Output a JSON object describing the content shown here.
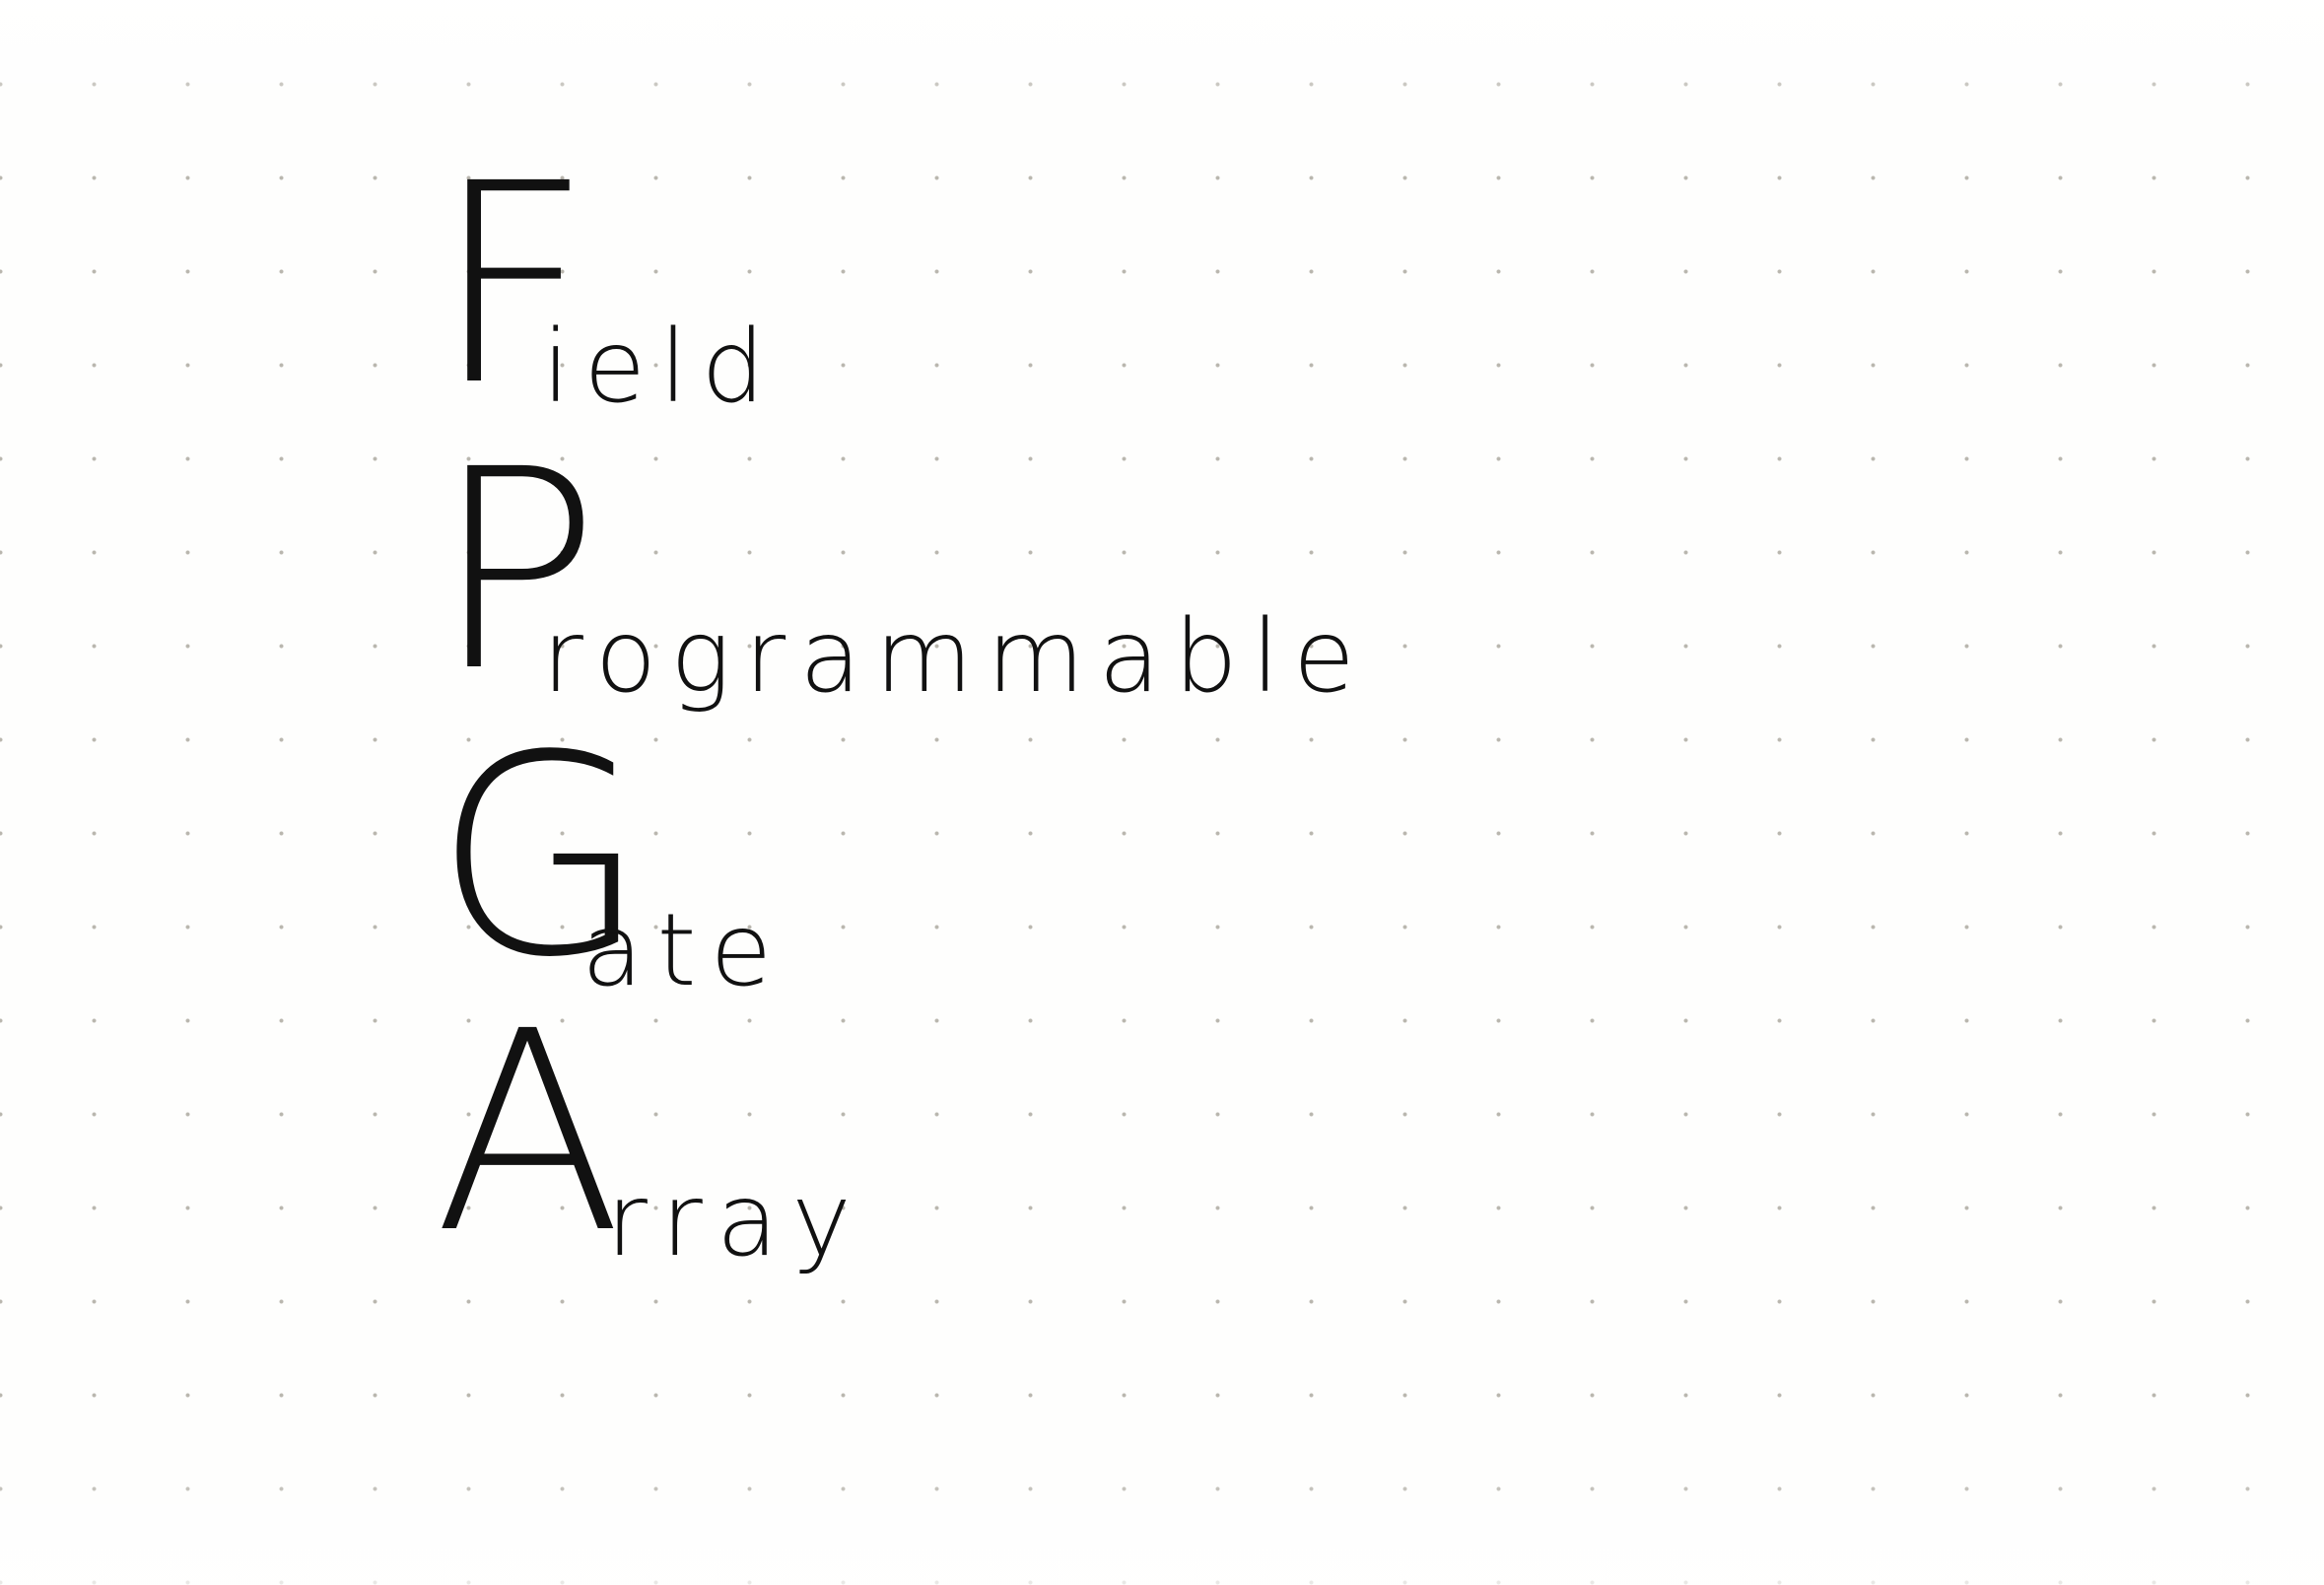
{
  "page": {
    "ink_color": "#111111",
    "paper_color": "#fefefd",
    "dot_color": "#b9b6ae"
  },
  "acronym": {
    "words": [
      {
        "initial": "F",
        "rest": "ield"
      },
      {
        "initial": "P",
        "rest": "rogrammable"
      },
      {
        "initial": "G",
        "rest": "ate"
      },
      {
        "initial": "A",
        "rest": "rray"
      }
    ]
  }
}
